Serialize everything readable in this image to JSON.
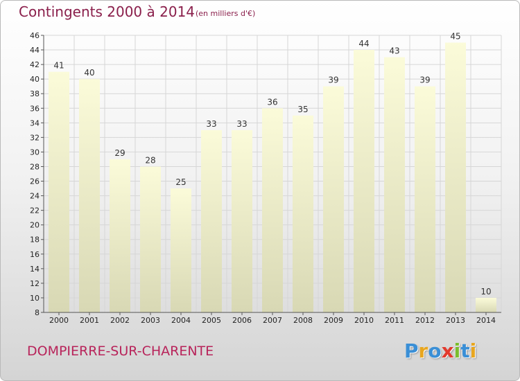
{
  "header": {
    "title": "Contingents 2000 à 2014",
    "subtitle": "(en milliers d'€)"
  },
  "footer": {
    "commune": "DOMPIERRE-SUR-CHARENTE",
    "logo_letters": [
      {
        "char": "P",
        "color": "#3a8fd6"
      },
      {
        "char": "r",
        "color": "#e8a61f"
      },
      {
        "char": "o",
        "color": "#3a8fd6"
      },
      {
        "char": "x",
        "color": "#e23a2e"
      },
      {
        "char": "i",
        "color": "#7bbd2d"
      },
      {
        "char": "t",
        "color": "#3a8fd6"
      },
      {
        "char": "i",
        "color": "#e8a61f"
      }
    ]
  },
  "chart_data": {
    "type": "bar",
    "title": "Contingents 2000 à 2014",
    "subtitle": "(en milliers d'€)",
    "categories": [
      "2000",
      "2001",
      "2002",
      "2003",
      "2004",
      "2005",
      "2006",
      "2007",
      "2008",
      "2009",
      "2010",
      "2011",
      "2012",
      "2013",
      "2014"
    ],
    "values": [
      41,
      40,
      29,
      28,
      25,
      33,
      33,
      36,
      35,
      39,
      44,
      43,
      39,
      45,
      10
    ],
    "ylim": [
      8,
      46
    ],
    "yticks": [
      8,
      10,
      12,
      14,
      16,
      18,
      20,
      22,
      24,
      26,
      28,
      30,
      32,
      34,
      36,
      38,
      40,
      42,
      44,
      46
    ],
    "grid": true,
    "colors": {
      "bar_top": "#fbfbd9",
      "bar_bottom": "#d8d8b4",
      "grid": "#d6d6d6",
      "axis": "#555555"
    }
  }
}
